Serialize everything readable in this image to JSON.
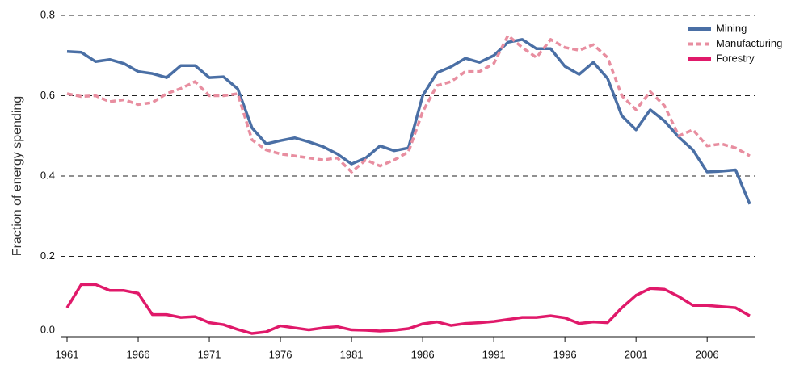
{
  "chart_data": {
    "type": "line",
    "y_label": "Fraction of energy spending",
    "x": [
      1961,
      1962,
      1963,
      1964,
      1965,
      1966,
      1967,
      1968,
      1969,
      1970,
      1971,
      1972,
      1973,
      1974,
      1975,
      1976,
      1977,
      1978,
      1979,
      1980,
      1981,
      1982,
      1983,
      1984,
      1985,
      1986,
      1987,
      1988,
      1989,
      1990,
      1991,
      1992,
      1993,
      1994,
      1995,
      1996,
      1997,
      1998,
      1999,
      2000,
      2001,
      2002,
      2003,
      2004,
      2005,
      2006,
      2007,
      2008,
      2009
    ],
    "xlim": [
      1961,
      2009
    ],
    "xticks": [
      1961,
      1966,
      1971,
      1976,
      1981,
      1986,
      1991,
      1996,
      2001,
      2006
    ],
    "ylim": [
      0,
      0.8
    ],
    "yticks": [
      {
        "value": 0,
        "label": "0.0"
      },
      0.2,
      0.4,
      0.6,
      0.8
    ],
    "grid": true,
    "legend": "top-right",
    "series": [
      {
        "name": "Mining",
        "color": "#4a6fa5",
        "dash": false,
        "values": [
          0.71,
          0.708,
          0.685,
          0.69,
          0.68,
          0.66,
          0.655,
          0.645,
          0.675,
          0.675,
          0.645,
          0.647,
          0.617,
          0.52,
          0.48,
          0.488,
          0.495,
          0.485,
          0.473,
          0.455,
          0.43,
          0.445,
          0.475,
          0.463,
          0.47,
          0.6,
          0.657,
          0.672,
          0.693,
          0.683,
          0.7,
          0.733,
          0.74,
          0.717,
          0.717,
          0.673,
          0.653,
          0.683,
          0.643,
          0.55,
          0.515,
          0.565,
          0.537,
          0.497,
          0.465,
          0.41,
          0.412,
          0.415,
          0.33
        ]
      },
      {
        "name": "Manufacturing",
        "color": "#e88ea0",
        "dash": true,
        "values": [
          0.605,
          0.598,
          0.6,
          0.585,
          0.59,
          0.578,
          0.583,
          0.605,
          0.618,
          0.635,
          0.6,
          0.6,
          0.605,
          0.49,
          0.465,
          0.455,
          0.45,
          0.445,
          0.44,
          0.445,
          0.41,
          0.44,
          0.425,
          0.44,
          0.46,
          0.56,
          0.625,
          0.635,
          0.66,
          0.66,
          0.68,
          0.75,
          0.72,
          0.695,
          0.74,
          0.72,
          0.713,
          0.727,
          0.695,
          0.6,
          0.565,
          0.61,
          0.575,
          0.5,
          0.515,
          0.475,
          0.48,
          0.47,
          0.45
        ]
      },
      {
        "name": "Forestry",
        "color": "#e0196a",
        "dash": false,
        "values": [
          0.072,
          0.13,
          0.13,
          0.115,
          0.115,
          0.108,
          0.055,
          0.055,
          0.048,
          0.05,
          0.035,
          0.03,
          0.018,
          0.008,
          0.012,
          0.027,
          0.022,
          0.017,
          0.022,
          0.025,
          0.017,
          0.016,
          0.014,
          0.016,
          0.02,
          0.032,
          0.037,
          0.028,
          0.033,
          0.035,
          0.038,
          0.043,
          0.048,
          0.048,
          0.052,
          0.047,
          0.033,
          0.037,
          0.035,
          0.072,
          0.103,
          0.12,
          0.118,
          0.1,
          0.078,
          0.078,
          0.075,
          0.072,
          0.052
        ]
      }
    ]
  }
}
